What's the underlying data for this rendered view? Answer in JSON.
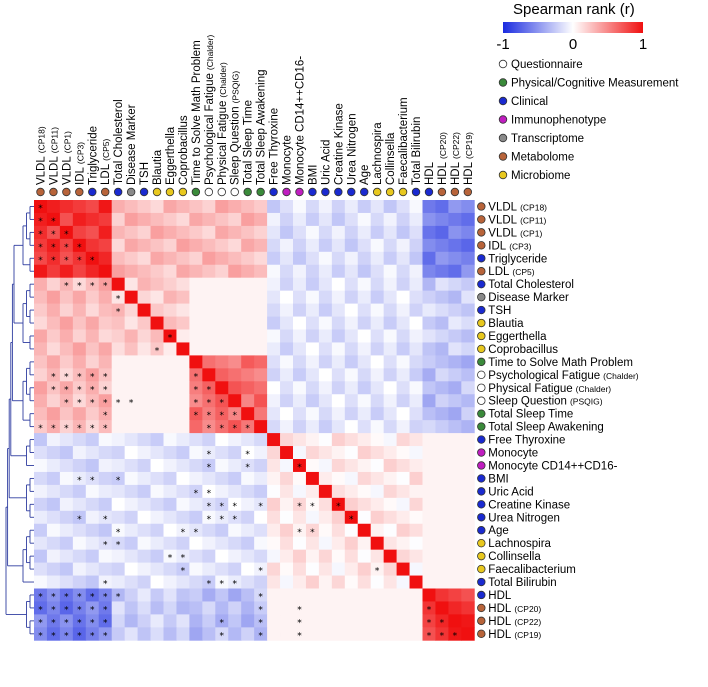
{
  "chart_data": {
    "type": "heatmap",
    "title": "",
    "colorbar": {
      "label": "Spearman rank (r)",
      "min": -1,
      "mid": 0,
      "max": 1,
      "tick_labels": [
        "-1",
        "0",
        "1"
      ],
      "low_color": "#1a2be0",
      "mid_color": "#ffffff",
      "high_color": "#f01010"
    },
    "category_colors": {
      "Questionnaire": "#ffffff",
      "Physical/Cognitive Measurement": "#3a8a3a",
      "Clinical": "#1a2ad0",
      "Immunophenotype": "#c01ec0",
      "Transcriptome": "#8a8a8a",
      "Metabolome": "#b8643a",
      "Microbiome": "#e8c81e"
    },
    "legend_categories": [
      "Questionnaire",
      "Physical/Cognitive Measurement",
      "Clinical",
      "Immunophenotype",
      "Transcriptome",
      "Metabolome",
      "Microbiome"
    ],
    "variables": [
      {
        "name": "VLDL",
        "sub": "(CP18)",
        "cat": "Metabolome"
      },
      {
        "name": "VLDL",
        "sub": "(CP11)",
        "cat": "Metabolome"
      },
      {
        "name": "VLDL",
        "sub": "(CP1)",
        "cat": "Metabolome"
      },
      {
        "name": "IDL",
        "sub": "(CP3)",
        "cat": "Metabolome"
      },
      {
        "name": "Triglyceride",
        "sub": "",
        "cat": "Clinical"
      },
      {
        "name": "LDL",
        "sub": "(CP5)",
        "cat": "Metabolome"
      },
      {
        "name": "Total Cholesterol",
        "sub": "",
        "cat": "Clinical"
      },
      {
        "name": "Disease Marker",
        "sub": "",
        "cat": "Transcriptome"
      },
      {
        "name": "TSH",
        "sub": "",
        "cat": "Clinical"
      },
      {
        "name": "Blautia",
        "sub": "",
        "cat": "Microbiome"
      },
      {
        "name": "Eggerthella",
        "sub": "",
        "cat": "Microbiome"
      },
      {
        "name": "Coprobacillus",
        "sub": "",
        "cat": "Microbiome"
      },
      {
        "name": "Time to Solve Math Problem",
        "sub": "",
        "cat": "Physical/Cognitive Measurement"
      },
      {
        "name": "Psychological Fatigue",
        "sub": "(Chalder)",
        "cat": "Questionnaire"
      },
      {
        "name": "Physical Fatigue",
        "sub": "(Chalder)",
        "cat": "Questionnaire"
      },
      {
        "name": "Sleep Question",
        "sub": "(PSQIG)",
        "cat": "Questionnaire"
      },
      {
        "name": "Total Sleep Time",
        "sub": "",
        "cat": "Physical/Cognitive Measurement"
      },
      {
        "name": "Total Sleep Awakening",
        "sub": "",
        "cat": "Physical/Cognitive Measurement"
      },
      {
        "name": "Free Thyroxine",
        "sub": "",
        "cat": "Clinical"
      },
      {
        "name": "Monocyte",
        "sub": "",
        "cat": "Immunophenotype"
      },
      {
        "name": "Monocyte CD14++CD16-",
        "sub": "",
        "cat": "Immunophenotype"
      },
      {
        "name": "BMI",
        "sub": "",
        "cat": "Clinical"
      },
      {
        "name": "Uric Acid",
        "sub": "",
        "cat": "Clinical"
      },
      {
        "name": "Creatine Kinase",
        "sub": "",
        "cat": "Clinical"
      },
      {
        "name": "Urea Nitrogen",
        "sub": "",
        "cat": "Clinical"
      },
      {
        "name": "Age",
        "sub": "",
        "cat": "Clinical"
      },
      {
        "name": "Lachnospira",
        "sub": "",
        "cat": "Microbiome"
      },
      {
        "name": "Collinsella",
        "sub": "",
        "cat": "Microbiome"
      },
      {
        "name": "Faecalibacterium",
        "sub": "",
        "cat": "Microbiome"
      },
      {
        "name": "Total Bilirubin",
        "sub": "",
        "cat": "Clinical"
      },
      {
        "name": "HDL",
        "sub": "",
        "cat": "Clinical"
      },
      {
        "name": "HDL",
        "sub": "(CP20)",
        "cat": "Metabolome"
      },
      {
        "name": "HDL",
        "sub": "(CP22)",
        "cat": "Metabolome"
      },
      {
        "name": "HDL",
        "sub": "(CP19)",
        "cat": "Metabolome"
      }
    ],
    "blocks": [
      {
        "rows": [
          0,
          5
        ],
        "cols": [
          0,
          5
        ],
        "r": 0.85
      },
      {
        "rows": [
          30,
          33
        ],
        "cols": [
          30,
          33
        ],
        "r": 0.85
      },
      {
        "rows": [
          0,
          5
        ],
        "cols": [
          30,
          33
        ],
        "r": -0.78
      },
      {
        "rows": [
          0,
          5
        ],
        "cols": [
          6,
          17
        ],
        "r": 0.32
      },
      {
        "rows": [
          6,
          17
        ],
        "cols": [
          0,
          5
        ],
        "r": 0.28
      },
      {
        "rows": [
          12,
          17
        ],
        "cols": [
          12,
          17
        ],
        "r": 0.6
      },
      {
        "rows": [
          6,
          11
        ],
        "cols": [
          6,
          11
        ],
        "r": 0.2
      },
      {
        "rows": [
          30,
          33
        ],
        "cols": [
          0,
          5
        ],
        "r": -0.6
      },
      {
        "rows": [
          30,
          33
        ],
        "cols": [
          6,
          11
        ],
        "r": -0.22
      },
      {
        "rows": [
          30,
          33
        ],
        "cols": [
          12,
          17
        ],
        "r": -0.3
      },
      {
        "rows": [
          18,
          29
        ],
        "cols": [
          18,
          29
        ],
        "r": 0.08
      },
      {
        "rows": [
          6,
          17
        ],
        "cols": [
          18,
          29
        ],
        "r": -0.12
      },
      {
        "rows": [
          0,
          5
        ],
        "cols": [
          18,
          29
        ],
        "r": -0.15
      }
    ],
    "significant_cells": [
      [
        0,
        0
      ],
      [
        1,
        0
      ],
      [
        1,
        1
      ],
      [
        2,
        0
      ],
      [
        2,
        1
      ],
      [
        2,
        2
      ],
      [
        3,
        0
      ],
      [
        3,
        1
      ],
      [
        3,
        2
      ],
      [
        3,
        3
      ],
      [
        4,
        0
      ],
      [
        4,
        1
      ],
      [
        4,
        2
      ],
      [
        4,
        3
      ],
      [
        4,
        4
      ],
      [
        6,
        2
      ],
      [
        6,
        3
      ],
      [
        6,
        4
      ],
      [
        6,
        5
      ],
      [
        7,
        6
      ],
      [
        8,
        6
      ],
      [
        10,
        10
      ],
      [
        11,
        9
      ],
      [
        13,
        1
      ],
      [
        13,
        2
      ],
      [
        13,
        3
      ],
      [
        13,
        4
      ],
      [
        13,
        5
      ],
      [
        13,
        12
      ],
      [
        14,
        1
      ],
      [
        14,
        2
      ],
      [
        14,
        3
      ],
      [
        14,
        4
      ],
      [
        14,
        5
      ],
      [
        14,
        12
      ],
      [
        14,
        13
      ],
      [
        15,
        2
      ],
      [
        15,
        3
      ],
      [
        15,
        4
      ],
      [
        15,
        5
      ],
      [
        15,
        6
      ],
      [
        15,
        7
      ],
      [
        15,
        12
      ],
      [
        15,
        13
      ],
      [
        15,
        14
      ],
      [
        16,
        5
      ],
      [
        16,
        12
      ],
      [
        16,
        13
      ],
      [
        16,
        14
      ],
      [
        16,
        15
      ],
      [
        17,
        0
      ],
      [
        17,
        1
      ],
      [
        17,
        2
      ],
      [
        17,
        3
      ],
      [
        17,
        4
      ],
      [
        17,
        5
      ],
      [
        17,
        13
      ],
      [
        17,
        14
      ],
      [
        17,
        15
      ],
      [
        17,
        16
      ],
      [
        19,
        13
      ],
      [
        19,
        16
      ],
      [
        20,
        13
      ],
      [
        20,
        16
      ],
      [
        20,
        20
      ],
      [
        21,
        3
      ],
      [
        21,
        4
      ],
      [
        21,
        6
      ],
      [
        22,
        12
      ],
      [
        22,
        13
      ],
      [
        23,
        13
      ],
      [
        23,
        14
      ],
      [
        23,
        15
      ],
      [
        23,
        17
      ],
      [
        23,
        20
      ],
      [
        23,
        21
      ],
      [
        23,
        23
      ],
      [
        24,
        3
      ],
      [
        24,
        5
      ],
      [
        24,
        13
      ],
      [
        24,
        14
      ],
      [
        24,
        15
      ],
      [
        24,
        24
      ],
      [
        25,
        6
      ],
      [
        25,
        11
      ],
      [
        25,
        12
      ],
      [
        25,
        20
      ],
      [
        25,
        21
      ],
      [
        26,
        5
      ],
      [
        26,
        6
      ],
      [
        27,
        10
      ],
      [
        27,
        11
      ],
      [
        28,
        11
      ],
      [
        28,
        17
      ],
      [
        28,
        26
      ],
      [
        29,
        13
      ],
      [
        29,
        14
      ],
      [
        29,
        15
      ],
      [
        29,
        5
      ],
      [
        30,
        0
      ],
      [
        30,
        1
      ],
      [
        30,
        2
      ],
      [
        30,
        3
      ],
      [
        30,
        4
      ],
      [
        30,
        5
      ],
      [
        30,
        6
      ],
      [
        30,
        17
      ],
      [
        31,
        0
      ],
      [
        31,
        1
      ],
      [
        31,
        2
      ],
      [
        31,
        3
      ],
      [
        31,
        4
      ],
      [
        31,
        5
      ],
      [
        31,
        17
      ],
      [
        31,
        20
      ],
      [
        31,
        30
      ],
      [
        32,
        0
      ],
      [
        32,
        1
      ],
      [
        32,
        2
      ],
      [
        32,
        3
      ],
      [
        32,
        4
      ],
      [
        32,
        5
      ],
      [
        32,
        14
      ],
      [
        32,
        17
      ],
      [
        32,
        20
      ],
      [
        32,
        30
      ],
      [
        32,
        31
      ],
      [
        33,
        0
      ],
      [
        33,
        1
      ],
      [
        33,
        2
      ],
      [
        33,
        3
      ],
      [
        33,
        4
      ],
      [
        33,
        5
      ],
      [
        33,
        14
      ],
      [
        33,
        17
      ],
      [
        33,
        20
      ],
      [
        33,
        30
      ],
      [
        33,
        31
      ],
      [
        33,
        32
      ]
    ],
    "significance_marker": "*",
    "xlabel": "",
    "ylabel": ""
  }
}
